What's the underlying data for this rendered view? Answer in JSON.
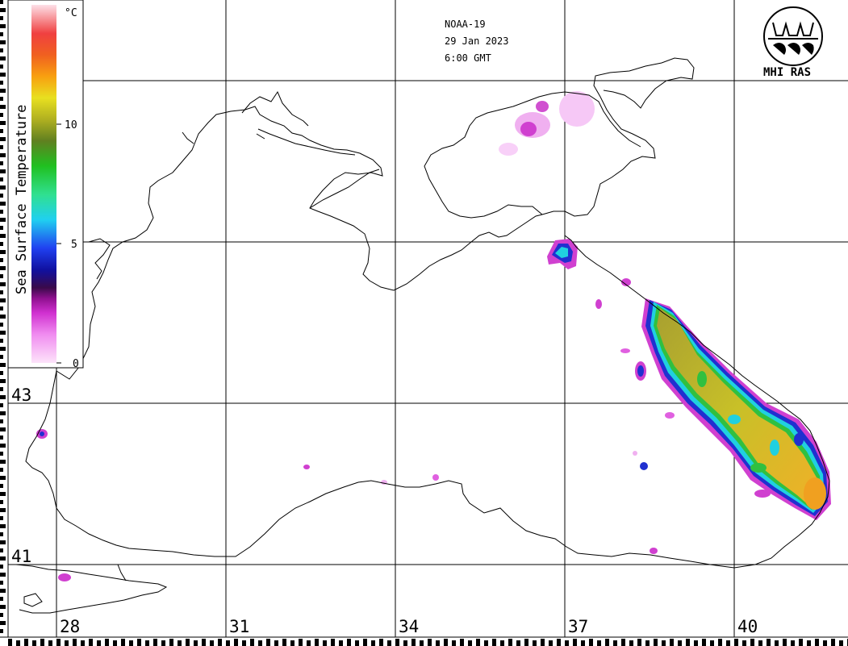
{
  "header": {
    "satellite": "NOAA-19",
    "date": "29 Jan 2023",
    "time": "6:00 GMT"
  },
  "logo": {
    "text": "MHI RAS"
  },
  "legend": {
    "title": "Sea Surface Temperature",
    "unit": "°C",
    "ticks": [
      "0",
      "5",
      "10"
    ]
  },
  "axes": {
    "latitude_labels": [
      "43",
      "41"
    ],
    "longitude_labels": [
      "28",
      "31",
      "34",
      "37",
      "40"
    ]
  },
  "colors": {
    "grid": "#000000",
    "coast": "#000000",
    "cold_magenta": "#e040e0",
    "cool_blue": "#2030d0",
    "cyan": "#20d0e0",
    "green": "#30c040",
    "olive": "#a8a830",
    "yellow": "#d8d020",
    "orange": "#f0a020"
  }
}
